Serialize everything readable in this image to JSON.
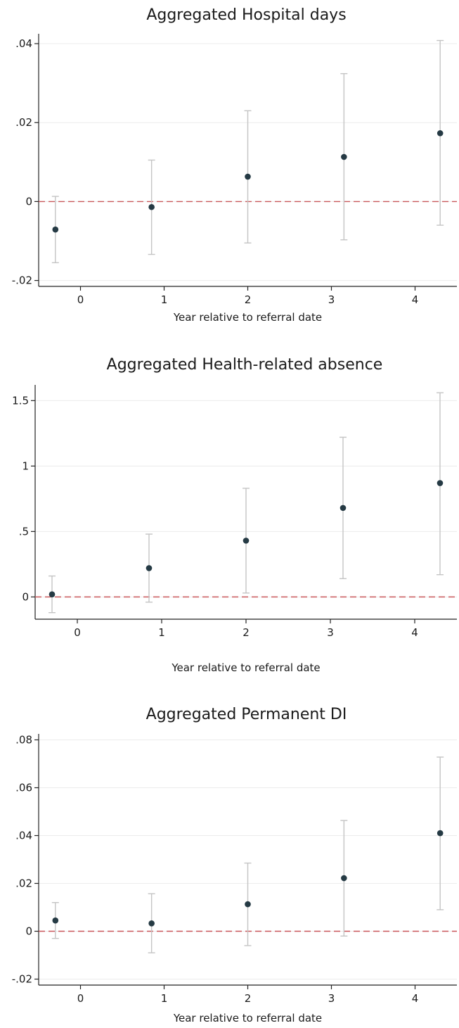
{
  "chart_data": [
    {
      "type": "scatter",
      "title": "Aggregated Hospital days",
      "xlabel": "Year relative to referral date",
      "ylabel": "",
      "xticks": [
        "0",
        "1",
        "2",
        "3",
        "4"
      ],
      "yticks": [
        {
          "value": 0.04,
          "label": ".04"
        },
        {
          "value": 0.02,
          "label": ".02"
        },
        {
          "value": 0,
          "label": "0"
        },
        {
          "value": -0.02,
          "label": "-.02"
        }
      ],
      "ylim": [
        -0.0215,
        0.0425
      ],
      "xlim": [
        -0.5,
        4.5
      ],
      "reference_line": 0,
      "grid": "horizontal",
      "points": [
        {
          "x": -0.3,
          "y": -0.0071,
          "lo": -0.0155,
          "hi": 0.0013
        },
        {
          "x": 0.85,
          "y": -0.0014,
          "lo": -0.0134,
          "hi": 0.0105
        },
        {
          "x": 2.0,
          "y": 0.0063,
          "lo": -0.0105,
          "hi": 0.023
        },
        {
          "x": 3.15,
          "y": 0.0113,
          "lo": -0.0097,
          "hi": 0.0324
        },
        {
          "x": 4.3,
          "y": 0.0173,
          "lo": -0.006,
          "hi": 0.0408
        }
      ]
    },
    {
      "type": "scatter",
      "title": "Aggregated Health-related absence",
      "xlabel": "Year relative to referral date",
      "ylabel": "",
      "xticks": [
        "0",
        "1",
        "2",
        "3",
        "4"
      ],
      "yticks": [
        {
          "value": 1.5,
          "label": "1.5"
        },
        {
          "value": 1,
          "label": "1"
        },
        {
          "value": 0.5,
          "label": ".5"
        },
        {
          "value": 0,
          "label": "0"
        }
      ],
      "ylim": [
        -0.17,
        1.62
      ],
      "xlim": [
        -0.5,
        4.5
      ],
      "reference_line": 0,
      "grid": "horizontal",
      "points": [
        {
          "x": -0.3,
          "y": 0.02,
          "lo": -0.12,
          "hi": 0.16
        },
        {
          "x": 0.85,
          "y": 0.22,
          "lo": -0.04,
          "hi": 0.48
        },
        {
          "x": 2.0,
          "y": 0.43,
          "lo": 0.03,
          "hi": 0.83
        },
        {
          "x": 3.15,
          "y": 0.68,
          "lo": 0.14,
          "hi": 1.22
        },
        {
          "x": 4.3,
          "y": 0.87,
          "lo": 0.17,
          "hi": 1.56
        }
      ]
    },
    {
      "type": "scatter",
      "title": "Aggregated Permanent DI",
      "xlabel": "Year relative to referral date",
      "ylabel": "",
      "xticks": [
        "0",
        "1",
        "2",
        "3",
        "4"
      ],
      "yticks": [
        {
          "value": 0.08,
          "label": ".08"
        },
        {
          "value": 0.06,
          "label": ".06"
        },
        {
          "value": 0.04,
          "label": ".04"
        },
        {
          "value": 0.02,
          "label": ".02"
        },
        {
          "value": 0,
          "label": "0"
        },
        {
          "value": -0.02,
          "label": "-.02"
        }
      ],
      "ylim": [
        -0.0225,
        0.0825
      ],
      "xlim": [
        -0.5,
        4.5
      ],
      "reference_line": 0,
      "grid": "horizontal",
      "points": [
        {
          "x": -0.3,
          "y": 0.0045,
          "lo": -0.003,
          "hi": 0.012
        },
        {
          "x": 0.85,
          "y": 0.0033,
          "lo": -0.009,
          "hi": 0.0157
        },
        {
          "x": 2.0,
          "y": 0.0113,
          "lo": -0.006,
          "hi": 0.0285
        },
        {
          "x": 3.15,
          "y": 0.0222,
          "lo": -0.002,
          "hi": 0.0463
        },
        {
          "x": 4.3,
          "y": 0.041,
          "lo": 0.009,
          "hi": 0.0728
        }
      ]
    }
  ]
}
